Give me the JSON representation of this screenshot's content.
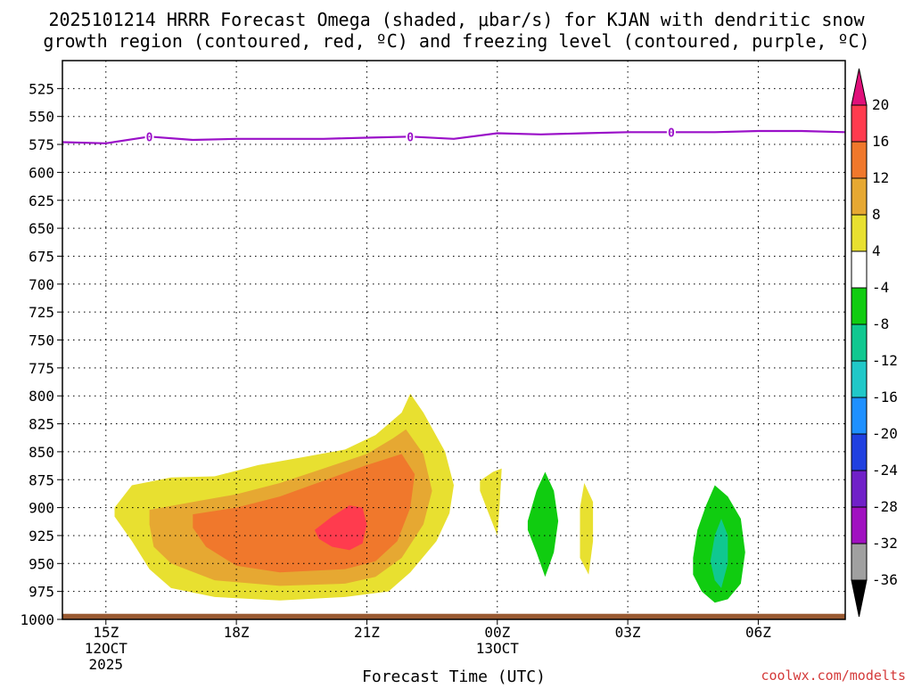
{
  "chart_data": {
    "type": "time-height cross section (filled contour)",
    "title_line1": "2025101214 HRRR Forecast Omega (shaded, μbar/s) for KJAN with dendritic snow",
    "title_line2": "growth region (contoured, red, ºC) and freezing level (contoured, purple, ºC)",
    "xlabel": "Forecast Time (UTC)",
    "ylabel": "",
    "credit": "coolwx.com/modelts",
    "x_ticks": [
      {
        "hour": 15,
        "label": "15Z",
        "date": "12OCT",
        "year": "2025"
      },
      {
        "hour": 18,
        "label": "18Z",
        "date": "",
        "year": ""
      },
      {
        "hour": 21,
        "label": "21Z",
        "date": "",
        "year": ""
      },
      {
        "hour": 24,
        "label": "00Z",
        "date": "13OCT",
        "year": ""
      },
      {
        "hour": 27,
        "label": "03Z",
        "date": "",
        "year": ""
      },
      {
        "hour": 30,
        "label": "06Z",
        "date": "",
        "year": ""
      }
    ],
    "xlim": [
      14,
      32
    ],
    "y_levels": [
      525,
      550,
      575,
      600,
      625,
      650,
      675,
      700,
      725,
      750,
      775,
      800,
      825,
      850,
      875,
      900,
      925,
      950,
      975,
      1000
    ],
    "ylim_hPa": [
      500,
      1000
    ],
    "grid": true,
    "colorbar": {
      "levels": [
        20,
        16,
        12,
        8,
        4,
        -4,
        -8,
        -12,
        -16,
        -20,
        -24,
        -28,
        -32,
        -36
      ],
      "colors": [
        "#ff3b4e",
        "#f0782c",
        "#e6a832",
        "#e8e030",
        "#ffffff",
        "#10cc10",
        "#10c890",
        "#20c8c8",
        "#1e90ff",
        "#2040e0",
        "#7020c8",
        "#a010c0",
        "#a0a0a0"
      ],
      "top_color": "#e0107a",
      "bottom_color": "#000000"
    },
    "freezing_level": {
      "label": "0",
      "color": "#9a10c8",
      "points": [
        [
          14.0,
          573
        ],
        [
          15.0,
          574
        ],
        [
          16.0,
          568
        ],
        [
          17.0,
          571
        ],
        [
          18.0,
          570
        ],
        [
          19.0,
          570
        ],
        [
          20.0,
          570
        ],
        [
          21.0,
          569
        ],
        [
          22.0,
          568
        ],
        [
          23.0,
          570
        ],
        [
          24.0,
          565
        ],
        [
          25.0,
          566
        ],
        [
          26.0,
          565
        ],
        [
          27.0,
          564
        ],
        [
          28.0,
          564
        ],
        [
          29.0,
          564
        ],
        [
          30.0,
          563
        ],
        [
          31.0,
          563
        ],
        [
          32.0,
          564
        ]
      ],
      "label_hours": [
        16.0,
        22.0,
        28.0
      ]
    },
    "omega_regions": [
      {
        "value": 4,
        "color": "#e8e030",
        "points": [
          [
            15.2,
            900
          ],
          [
            15.6,
            880
          ],
          [
            16.5,
            873
          ],
          [
            17.5,
            872
          ],
          [
            18.5,
            862
          ],
          [
            19.5,
            855
          ],
          [
            20.5,
            848
          ],
          [
            21.2,
            835
          ],
          [
            21.8,
            815
          ],
          [
            22.0,
            798
          ],
          [
            22.3,
            815
          ],
          [
            22.8,
            850
          ],
          [
            23.0,
            880
          ],
          [
            22.9,
            905
          ],
          [
            22.6,
            930
          ],
          [
            22.0,
            958
          ],
          [
            21.5,
            975
          ],
          [
            20.5,
            980
          ],
          [
            19.0,
            983
          ],
          [
            17.5,
            980
          ],
          [
            16.5,
            972
          ],
          [
            16.0,
            955
          ],
          [
            15.6,
            930
          ],
          [
            15.2,
            908
          ]
        ]
      },
      {
        "value": 8,
        "color": "#e6a832",
        "points": [
          [
            16.0,
            902
          ],
          [
            17.0,
            895
          ],
          [
            18.0,
            888
          ],
          [
            19.0,
            878
          ],
          [
            20.0,
            865
          ],
          [
            21.0,
            852
          ],
          [
            21.6,
            838
          ],
          [
            21.9,
            830
          ],
          [
            22.3,
            852
          ],
          [
            22.5,
            885
          ],
          [
            22.3,
            915
          ],
          [
            21.8,
            945
          ],
          [
            21.2,
            962
          ],
          [
            20.5,
            968
          ],
          [
            19.0,
            970
          ],
          [
            17.5,
            965
          ],
          [
            16.5,
            950
          ],
          [
            16.1,
            935
          ],
          [
            16.0,
            915
          ]
        ]
      },
      {
        "value": 12,
        "color": "#f0782c",
        "points": [
          [
            17.0,
            906
          ],
          [
            18.0,
            900
          ],
          [
            19.0,
            890
          ],
          [
            20.0,
            876
          ],
          [
            21.0,
            862
          ],
          [
            21.8,
            852
          ],
          [
            22.1,
            870
          ],
          [
            22.0,
            900
          ],
          [
            21.7,
            930
          ],
          [
            21.2,
            948
          ],
          [
            20.5,
            955
          ],
          [
            19.0,
            958
          ],
          [
            18.0,
            952
          ],
          [
            17.3,
            935
          ],
          [
            17.0,
            918
          ]
        ]
      },
      {
        "value": 16,
        "color": "#ff3b4e",
        "points": [
          [
            19.8,
            920
          ],
          [
            20.2,
            908
          ],
          [
            20.6,
            898
          ],
          [
            20.9,
            900
          ],
          [
            21.0,
            915
          ],
          [
            20.9,
            932
          ],
          [
            20.6,
            938
          ],
          [
            20.2,
            935
          ],
          [
            19.9,
            928
          ]
        ]
      },
      {
        "value": 4,
        "color": "#e8e030",
        "points": [
          [
            23.6,
            876
          ],
          [
            23.9,
            868
          ],
          [
            24.1,
            865
          ],
          [
            24.05,
            900
          ],
          [
            24.0,
            925
          ],
          [
            23.8,
            905
          ],
          [
            23.6,
            885
          ]
        ]
      },
      {
        "value": -4,
        "color": "#10cc10",
        "points": [
          [
            24.7,
            912
          ],
          [
            24.9,
            885
          ],
          [
            25.1,
            868
          ],
          [
            25.3,
            885
          ],
          [
            25.4,
            912
          ],
          [
            25.3,
            940
          ],
          [
            25.1,
            962
          ],
          [
            24.9,
            940
          ],
          [
            24.7,
            920
          ]
        ]
      },
      {
        "value": 4,
        "color": "#e8e030",
        "points": [
          [
            25.9,
            900
          ],
          [
            26.0,
            878
          ],
          [
            26.2,
            895
          ],
          [
            26.2,
            930
          ],
          [
            26.1,
            960
          ],
          [
            25.9,
            945
          ],
          [
            25.9,
            920
          ]
        ]
      },
      {
        "value": -4,
        "color": "#10cc10",
        "points": [
          [
            28.5,
            945
          ],
          [
            28.6,
            920
          ],
          [
            28.8,
            898
          ],
          [
            29.0,
            880
          ],
          [
            29.3,
            890
          ],
          [
            29.6,
            910
          ],
          [
            29.7,
            940
          ],
          [
            29.6,
            968
          ],
          [
            29.3,
            982
          ],
          [
            29.0,
            985
          ],
          [
            28.7,
            975
          ],
          [
            28.5,
            960
          ]
        ]
      },
      {
        "value": -8,
        "color": "#10c890",
        "points": [
          [
            28.9,
            948
          ],
          [
            29.0,
            925
          ],
          [
            29.15,
            910
          ],
          [
            29.3,
            925
          ],
          [
            29.3,
            950
          ],
          [
            29.15,
            972
          ],
          [
            29.0,
            965
          ]
        ]
      }
    ],
    "terrain": {
      "color": "#9a5a32",
      "top_hPa": 995
    }
  }
}
